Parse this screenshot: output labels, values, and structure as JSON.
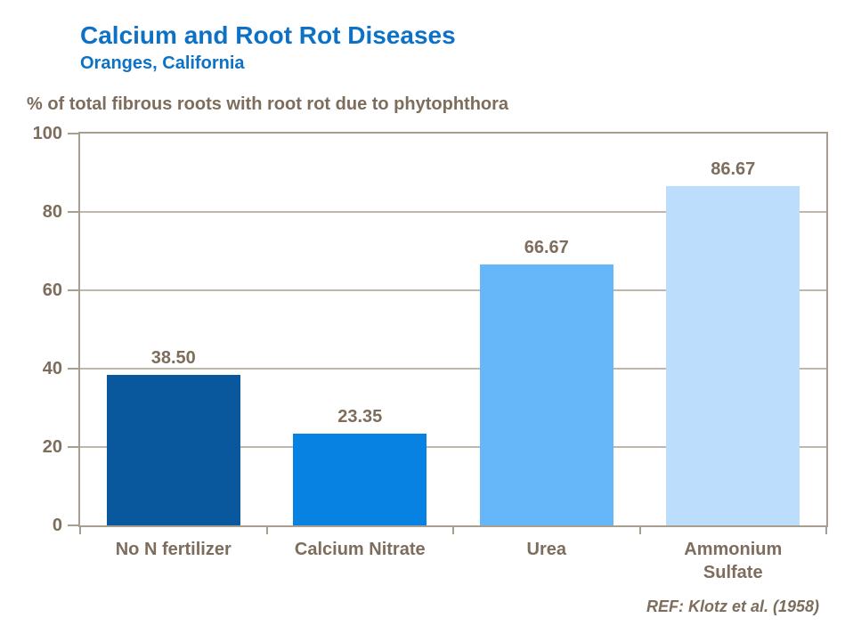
{
  "header": {
    "title": "Calcium and Root Rot Diseases",
    "subtitle": "Oranges, California"
  },
  "axis_note": "% of total fibrous roots with root rot due to phytophthora",
  "footnote": "REF: Klotz et al. (1958)",
  "colors": {
    "title_blue": "#0d72c5",
    "text_brown": "#7d6d5c",
    "axis_taupe": "#a89e90",
    "grid_taupe": "#c0b7ab",
    "background": "#ffffff"
  },
  "chart_data": {
    "type": "bar",
    "title": "Calcium and Root Rot Diseases",
    "subtitle": "Oranges, California",
    "ylabel": "% of total fibrous roots with root rot due to phytophthora",
    "categories": [
      "No N fertilizer",
      "Calcium Nitrate",
      "Urea",
      "Ammonium Sulfate"
    ],
    "category_display": [
      "No N fertilizer",
      "Calcium Nitrate",
      "Urea",
      "Ammonium\nSulfate"
    ],
    "values": [
      38.5,
      23.35,
      66.67,
      86.67
    ],
    "value_labels": [
      "38.50",
      "23.35",
      "66.67",
      "86.67"
    ],
    "bar_colors": [
      "#09589d",
      "#0781e2",
      "#66b7fa",
      "#bcddfb"
    ],
    "ylim": [
      0,
      100
    ],
    "yticks": [
      0,
      20,
      40,
      60,
      80,
      100
    ],
    "grid": true,
    "legend": false,
    "annotation": "REF: Klotz et al. (1958)"
  }
}
